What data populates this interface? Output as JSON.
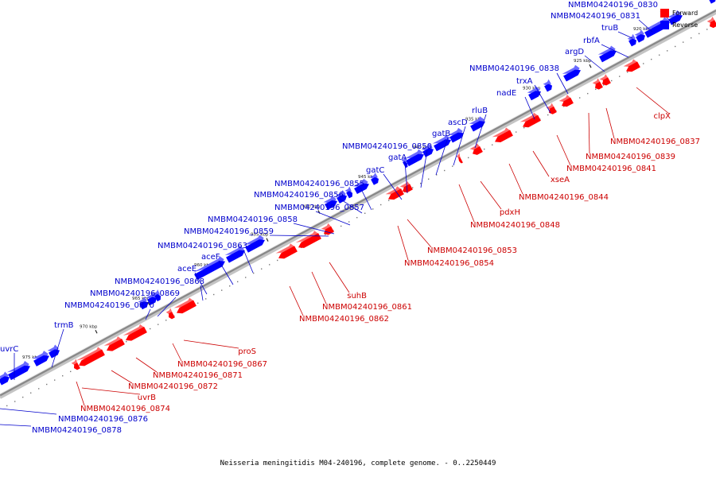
{
  "title": "Neisseria meningitidis M04-240196, complete genome. - 0..2250449",
  "legend": [
    {
      "label": "Forward",
      "color": "#ff0000"
    },
    {
      "label": "Reverse",
      "color": "#0000ff"
    }
  ],
  "colors": {
    "forward": "#ff0000",
    "reverse": "#0000ff",
    "label_forward": "#cc0000",
    "label_reverse": "#0000cc",
    "backbone": "#888888"
  },
  "ticks": [
    "920 kbp",
    "925 kbp",
    "930 kbp",
    "935 kbp",
    "940 kbp",
    "945 kbp",
    "950 kbp",
    "955 kbp",
    "960 kbp",
    "965 kbp",
    "970 kbp",
    "975 kbp"
  ],
  "reverse_genes": [
    "NMBM04240196_0830",
    "NMBM04240196_0831",
    "truB",
    "rbfA",
    "argD",
    "NMBM04240196_0838",
    "trxA",
    "nadE",
    "rluB",
    "ascD",
    "gatB",
    "NMBM04240196_0850",
    "gatA",
    "gatC",
    "NMBM04240196_0855",
    "NMBM04240196_0856",
    "NMBM04240196_0857",
    "NMBM04240196_0858",
    "NMBM04240196_0859",
    "NMBM04240196_0863",
    "aceF",
    "aceE",
    "NMBM04240196_0868",
    "NMBM04240196_0869",
    "NMBM04240196_0870",
    "trmB",
    "uvrC",
    "NMBM04240196_0876",
    "NMBM04240196_0878"
  ],
  "forward_genes": [
    "clpX",
    "NMBM04240196_0837",
    "NMBM04240196_0839",
    "NMBM04240196_0841",
    "xseA",
    "NMBM04240196_0844",
    "pdxH",
    "NMBM04240196_0848",
    "NMBM04240196_0853",
    "NMBM04240196_0854",
    "suhB",
    "NMBM04240196_0861",
    "NMBM04240196_0862",
    "proS",
    "NMBM04240196_0867",
    "NMBM04240196_0871",
    "NMBM04240196_0872",
    "uvrB",
    "NMBM04240196_0874"
  ]
}
